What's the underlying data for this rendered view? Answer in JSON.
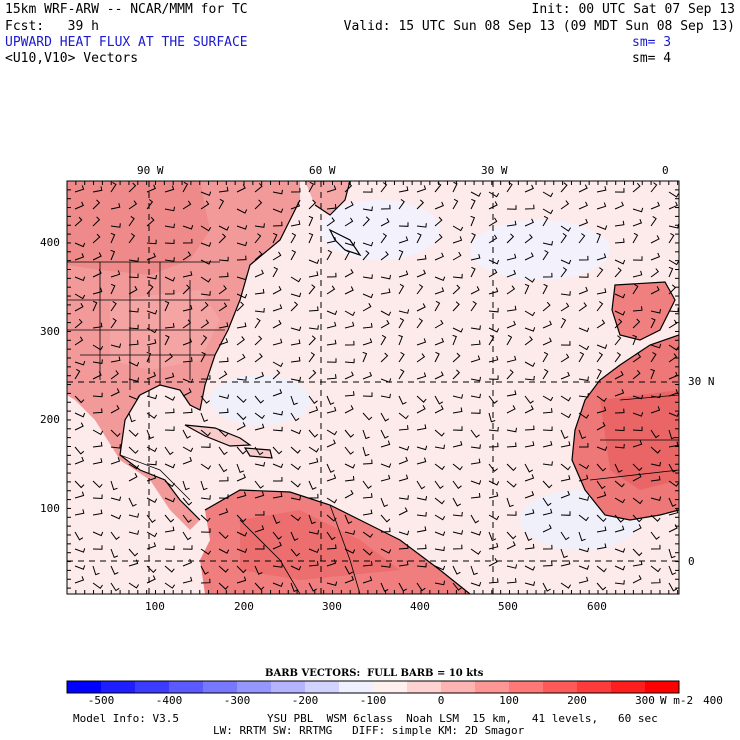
{
  "header": {
    "line1_left": "15km WRF-ARW -- NCAR/MMM for TC",
    "line1_right": "Init: 00 UTC Sat 07 Sep 13",
    "line2_left": "Fcst:   39 h",
    "line2_right": "Valid: 15 UTC Sun 08 Sep 13 (09 MDT Sun 08 Sep 13)",
    "field_title": "UPWARD HEAT FLUX AT THE SURFACE",
    "field_sm": "sm= 3",
    "vector_title": "<U10,V10> Vectors",
    "vector_sm": "sm= 4"
  },
  "map": {
    "lon_labels": [
      "90 W",
      "60 W",
      "30 W",
      "0"
    ],
    "lat_labels": [
      "30 N",
      "0"
    ],
    "x_ticks": [
      "100",
      "200",
      "300",
      "400",
      "500",
      "600"
    ],
    "y_ticks": [
      "400",
      "300",
      "200",
      "100"
    ]
  },
  "barb_note": "BARB VECTORS:  FULL BARB = 10 kts",
  "colorbar": {
    "unit": "W m-2",
    "labels": [
      "-500",
      "-400",
      "-300",
      "-200",
      "-100",
      "0",
      "100",
      "200",
      "300",
      "400"
    ],
    "colors": [
      "#0000ff",
      "#1e1eff",
      "#3c3cff",
      "#5a5aff",
      "#7878ff",
      "#9696ff",
      "#b4b4ff",
      "#d2d2ff",
      "#f0f0ff",
      "#fff0f0",
      "#ffd2d2",
      "#ffb4b4",
      "#ff9696",
      "#ff7878",
      "#ff5a5a",
      "#ff3c3c",
      "#ff1e1e",
      "#ff0000"
    ]
  },
  "footer": {
    "model_info": "Model Info: V3.5",
    "physics1": "YSU PBL  WSM 6class  Noah LSM  15 km,   41 levels,   60 sec",
    "physics2": "LW: RRTM SW: RRTMG   DIFF: simple KM: 2D Smagor"
  }
}
